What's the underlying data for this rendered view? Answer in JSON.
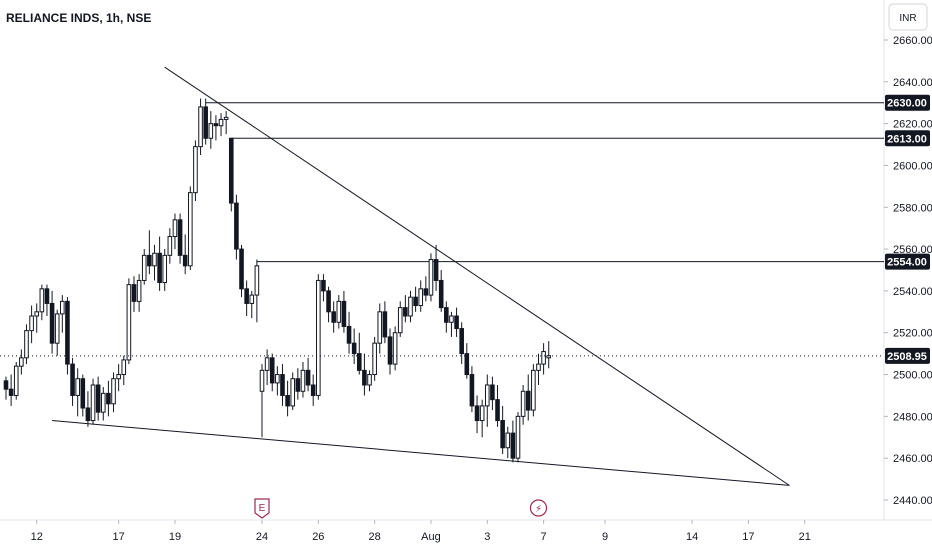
{
  "chart_data": {
    "type": "candlestick",
    "title": "RELIANCE INDS, 1h, NSE",
    "currency": "INR",
    "ylim": [
      2432,
      2668
    ],
    "y_ticks": [
      2440,
      2460,
      2480,
      2500,
      2520,
      2540,
      2560,
      2580,
      2600,
      2620,
      2640,
      2660
    ],
    "x_ticks": [
      "12",
      "17",
      "19",
      "24",
      "26",
      "28",
      "Aug",
      "3",
      "7",
      "9",
      "14",
      "17",
      "21"
    ],
    "x_tick_bars": [
      6,
      22,
      33,
      50,
      61,
      72,
      83,
      94,
      105,
      117,
      134,
      145,
      156
    ],
    "last_price": 2508.95,
    "horizontal_levels": [
      {
        "label": "2630.00",
        "value": 2630,
        "from_bar": 39
      },
      {
        "label": "2613.00",
        "value": 2613,
        "from_bar": 44
      },
      {
        "label": "2554.00",
        "value": 2554,
        "from_bar": 49
      }
    ],
    "trendlines": [
      {
        "name": "upper",
        "from": [
          31,
          2647
        ],
        "to": [
          153,
          2447
        ]
      },
      {
        "name": "lower",
        "from": [
          9,
          2478
        ],
        "to": [
          153,
          2447
        ]
      }
    ],
    "event_markers": [
      {
        "icon": "earnings-icon",
        "glyph": "E",
        "bar": 50
      },
      {
        "icon": "dividend-icon",
        "glyph": "⚡",
        "bar": 104
      }
    ],
    "up_color": "#ffffff",
    "down_color": "#131722",
    "candles": [
      [
        2497,
        2499,
        2488,
        2493
      ],
      [
        2493,
        2500,
        2485,
        2490
      ],
      [
        2490,
        2506,
        2488,
        2504
      ],
      [
        2504,
        2512,
        2500,
        2508
      ],
      [
        2508,
        2524,
        2505,
        2521
      ],
      [
        2521,
        2533,
        2515,
        2528
      ],
      [
        2528,
        2534,
        2520,
        2530
      ],
      [
        2530,
        2543,
        2526,
        2541
      ],
      [
        2541,
        2543,
        2528,
        2534
      ],
      [
        2534,
        2540,
        2510,
        2515
      ],
      [
        2515,
        2531,
        2509,
        2529
      ],
      [
        2529,
        2538,
        2520,
        2535
      ],
      [
        2535,
        2537,
        2500,
        2505
      ],
      [
        2505,
        2508,
        2485,
        2490
      ],
      [
        2490,
        2503,
        2480,
        2498
      ],
      [
        2498,
        2500,
        2480,
        2484
      ],
      [
        2484,
        2492,
        2475,
        2478
      ],
      [
        2478,
        2498,
        2476,
        2495
      ],
      [
        2495,
        2499,
        2478,
        2482
      ],
      [
        2482,
        2494,
        2478,
        2491
      ],
      [
        2491,
        2497,
        2480,
        2486
      ],
      [
        2486,
        2501,
        2482,
        2498
      ],
      [
        2498,
        2505,
        2492,
        2500
      ],
      [
        2500,
        2509,
        2495,
        2507
      ],
      [
        2507,
        2546,
        2505,
        2543
      ],
      [
        2543,
        2547,
        2530,
        2535
      ],
      [
        2535,
        2548,
        2530,
        2545
      ],
      [
        2545,
        2560,
        2543,
        2557
      ],
      [
        2557,
        2569,
        2548,
        2552
      ],
      [
        2552,
        2562,
        2545,
        2558
      ],
      [
        2558,
        2566,
        2540,
        2544
      ],
      [
        2544,
        2560,
        2540,
        2557
      ],
      [
        2557,
        2570,
        2553,
        2566
      ],
      [
        2566,
        2577,
        2560,
        2574
      ],
      [
        2574,
        2577,
        2553,
        2557
      ],
      [
        2557,
        2567,
        2548,
        2552
      ],
      [
        2552,
        2590,
        2550,
        2587
      ],
      [
        2587,
        2612,
        2583,
        2609
      ],
      [
        2609,
        2632,
        2605,
        2628
      ],
      [
        2628,
        2632,
        2610,
        2613
      ],
      [
        2613,
        2626,
        2608,
        2620
      ],
      [
        2620,
        2624,
        2612,
        2619
      ],
      [
        2619,
        2625,
        2614,
        2622
      ],
      [
        2622,
        2626,
        2615,
        2623
      ],
      [
        2613,
        2613,
        2578,
        2582
      ],
      [
        2582,
        2586,
        2555,
        2560
      ],
      [
        2560,
        2562,
        2537,
        2541
      ],
      [
        2541,
        2545,
        2528,
        2534
      ],
      [
        2534,
        2540,
        2527,
        2538
      ],
      [
        2538,
        2555,
        2525,
        2552
      ],
      [
        2492,
        2505,
        2470,
        2502
      ],
      [
        2502,
        2512,
        2495,
        2508
      ],
      [
        2508,
        2510,
        2492,
        2496
      ],
      [
        2496,
        2504,
        2490,
        2500
      ],
      [
        2500,
        2505,
        2485,
        2490
      ],
      [
        2490,
        2497,
        2480,
        2485
      ],
      [
        2485,
        2501,
        2483,
        2498
      ],
      [
        2498,
        2503,
        2488,
        2492
      ],
      [
        2492,
        2506,
        2489,
        2502
      ],
      [
        2502,
        2508,
        2492,
        2495
      ],
      [
        2495,
        2500,
        2485,
        2490
      ],
      [
        2490,
        2548,
        2488,
        2545
      ],
      [
        2545,
        2548,
        2535,
        2540
      ],
      [
        2540,
        2542,
        2525,
        2530
      ],
      [
        2530,
        2535,
        2520,
        2525
      ],
      [
        2525,
        2538,
        2522,
        2535
      ],
      [
        2535,
        2540,
        2520,
        2523
      ],
      [
        2523,
        2530,
        2510,
        2515
      ],
      [
        2515,
        2522,
        2505,
        2510
      ],
      [
        2510,
        2520,
        2500,
        2502
      ],
      [
        2502,
        2510,
        2490,
        2495
      ],
      [
        2495,
        2502,
        2492,
        2500
      ],
      [
        2500,
        2518,
        2497,
        2515
      ],
      [
        2515,
        2534,
        2510,
        2530
      ],
      [
        2530,
        2535,
        2515,
        2518
      ],
      [
        2518,
        2522,
        2500,
        2505
      ],
      [
        2505,
        2523,
        2502,
        2520
      ],
      [
        2520,
        2535,
        2518,
        2532
      ],
      [
        2532,
        2538,
        2525,
        2528
      ],
      [
        2528,
        2540,
        2525,
        2537
      ],
      [
        2537,
        2542,
        2530,
        2533
      ],
      [
        2533,
        2545,
        2530,
        2541
      ],
      [
        2541,
        2547,
        2535,
        2538
      ],
      [
        2538,
        2558,
        2535,
        2555
      ],
      [
        2555,
        2562,
        2540,
        2545
      ],
      [
        2545,
        2550,
        2530,
        2532
      ],
      [
        2532,
        2535,
        2520,
        2525
      ],
      [
        2525,
        2530,
        2518,
        2528
      ],
      [
        2528,
        2532,
        2518,
        2522
      ],
      [
        2522,
        2525,
        2505,
        2510
      ],
      [
        2510,
        2515,
        2498,
        2500
      ],
      [
        2500,
        2504,
        2482,
        2485
      ],
      [
        2485,
        2490,
        2472,
        2478
      ],
      [
        2478,
        2488,
        2470,
        2485
      ],
      [
        2485,
        2500,
        2475,
        2495
      ],
      [
        2495,
        2499,
        2483,
        2488
      ],
      [
        2488,
        2495,
        2475,
        2478
      ],
      [
        2478,
        2485,
        2462,
        2465
      ],
      [
        2465,
        2475,
        2460,
        2472
      ],
      [
        2472,
        2478,
        2458,
        2460
      ],
      [
        2460,
        2482,
        2458,
        2480
      ],
      [
        2480,
        2495,
        2476,
        2492
      ],
      [
        2492,
        2500,
        2478,
        2483
      ],
      [
        2483,
        2505,
        2480,
        2502
      ],
      [
        2502,
        2510,
        2495,
        2505
      ],
      [
        2505,
        2515,
        2500,
        2511
      ],
      [
        2508,
        2516,
        2503,
        2509
      ]
    ]
  }
}
